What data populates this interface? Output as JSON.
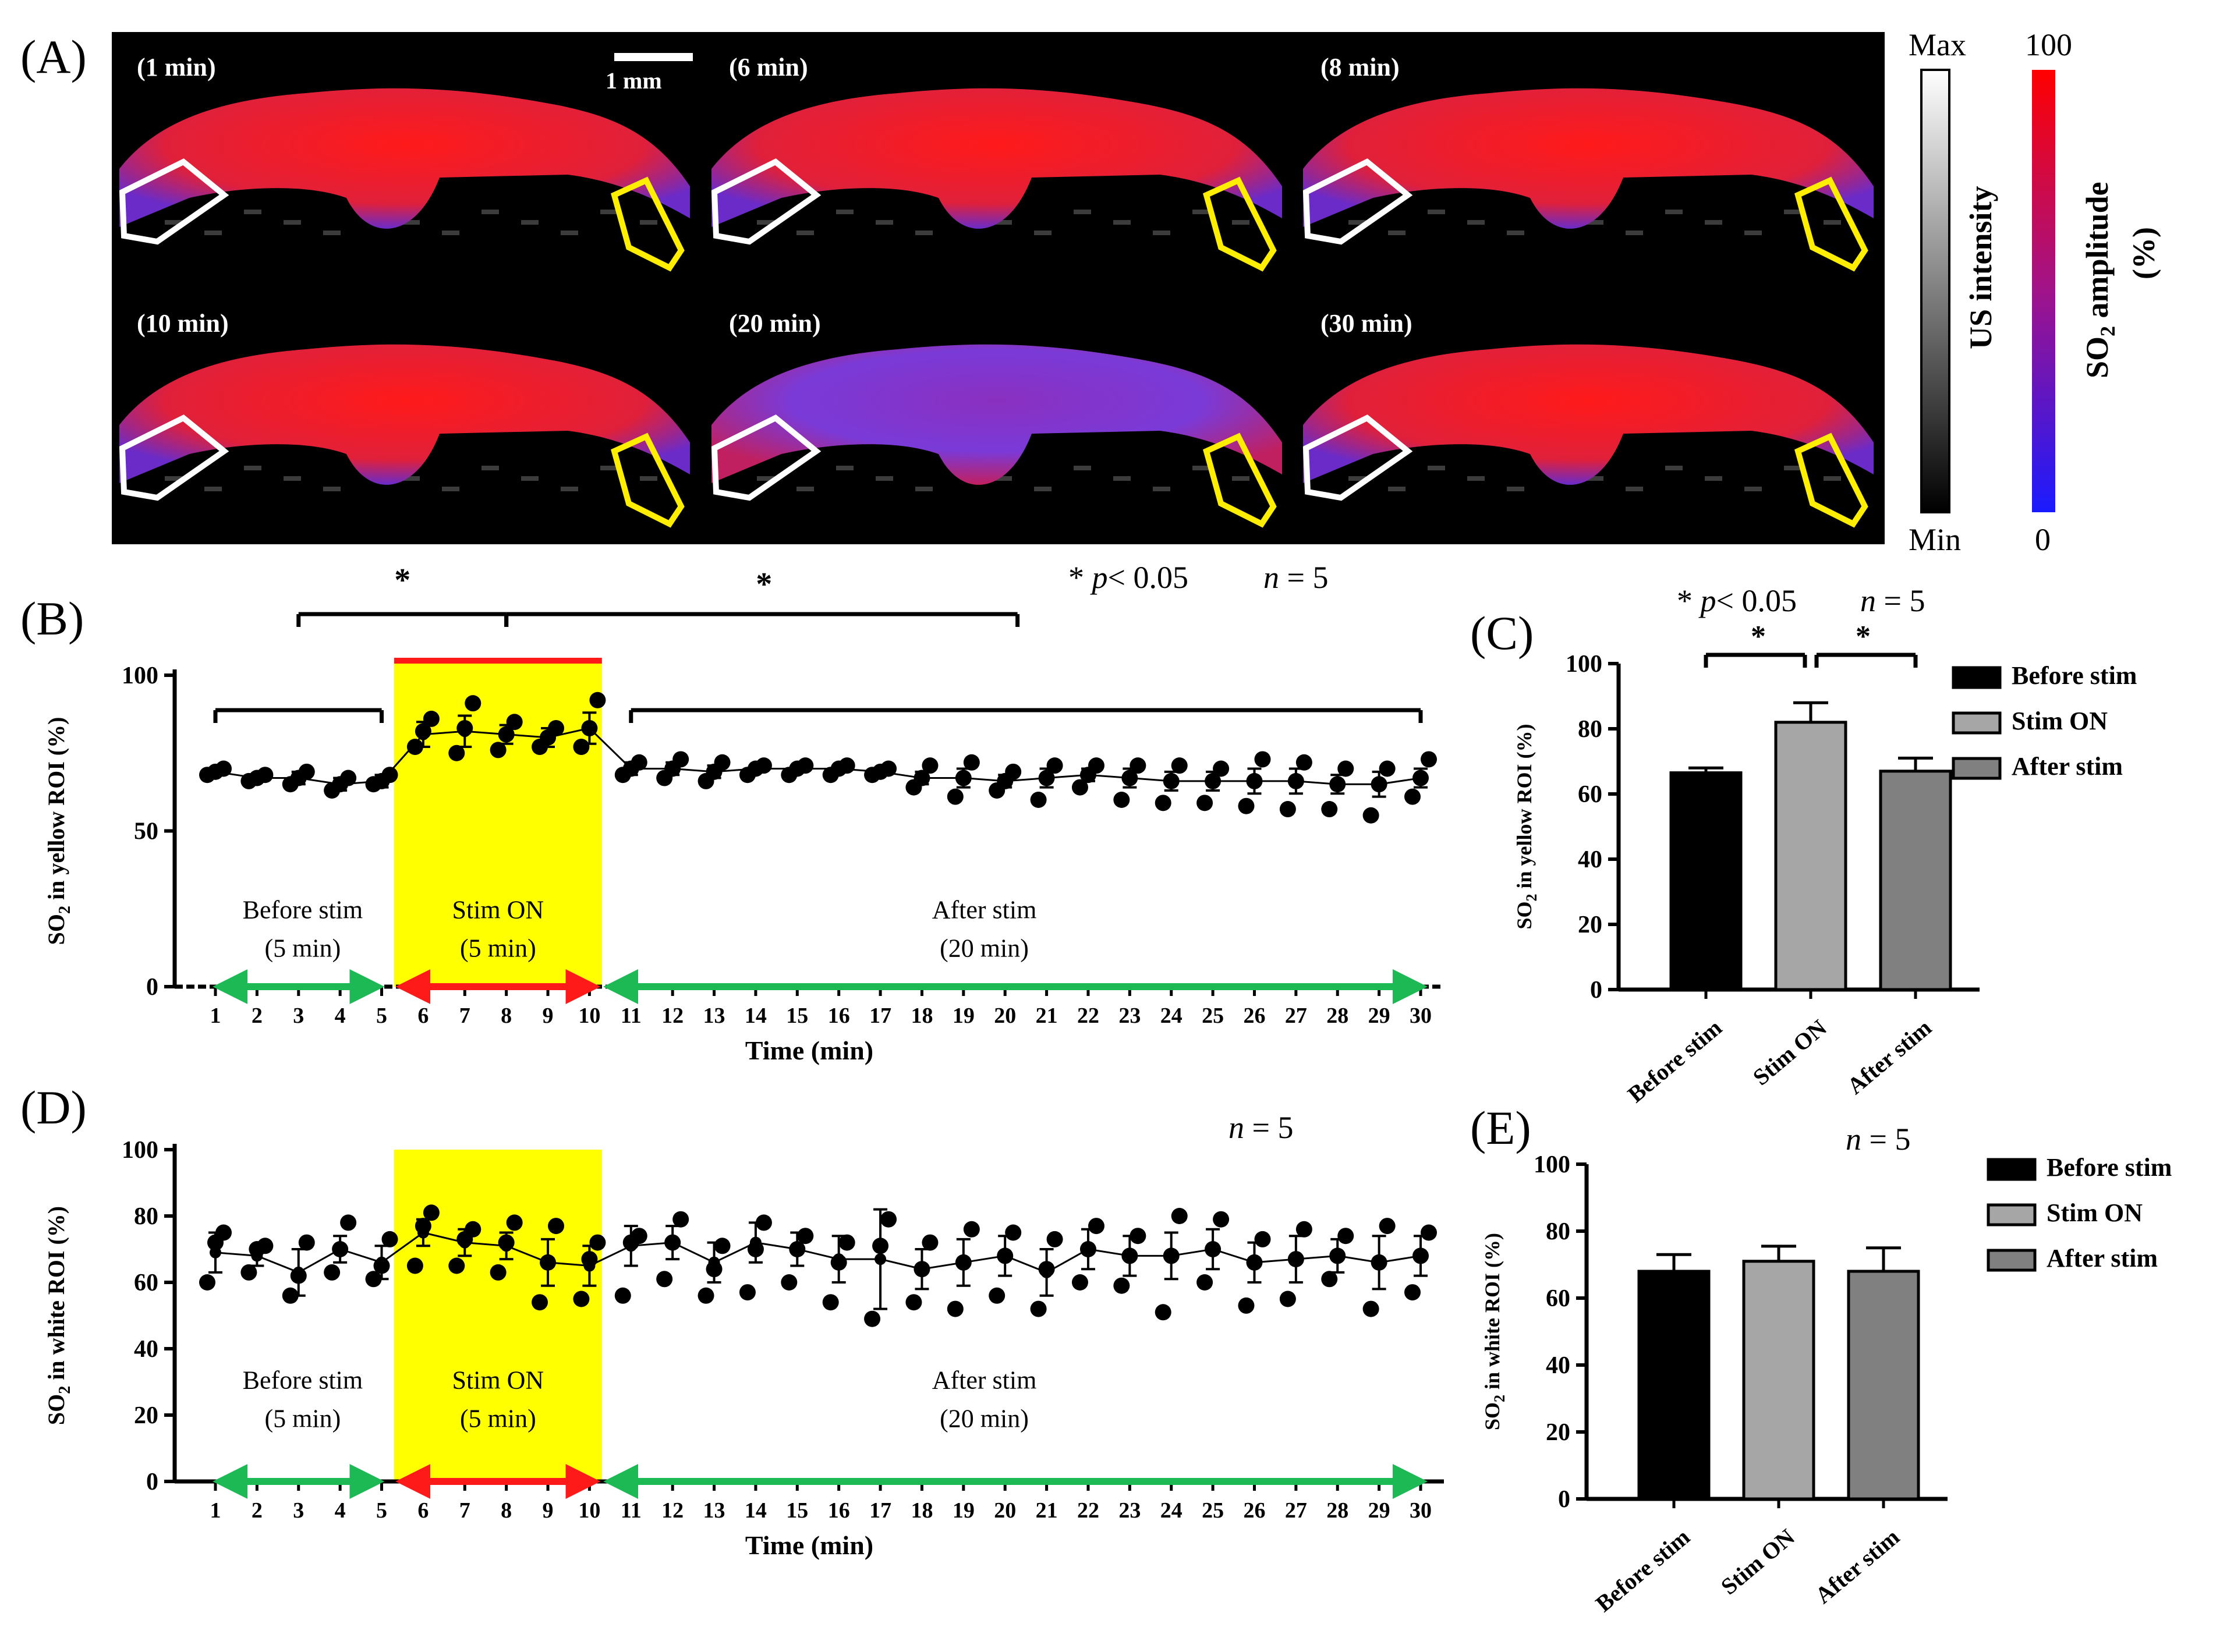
{
  "panel_letters": [
    "(A)",
    "(B)",
    "(C)",
    "(D)",
    "(E)"
  ],
  "panel_a": {
    "frame_labels": [
      "(1 min)",
      "(6 min)",
      "(8 min)",
      "(10 min)",
      "(20 min)",
      "(30 min)"
    ],
    "scale_bar_label": "1 mm",
    "us_colorbar": {
      "label": "US intensity",
      "max": "Max",
      "min": "Min"
    },
    "so2_colorbar": {
      "label_main": "SO",
      "label_sub": "2",
      "label_rest": " amplitude",
      "label_unit": "(%)",
      "max": "100",
      "min": "0"
    },
    "colors": {
      "background": "#000000",
      "so2_high": "#ff1a1a",
      "so2_low": "#3b2bd9",
      "roi_white": "#ffffff",
      "roi_yellow": "#ffee00"
    }
  },
  "colors": {
    "stim_band": "#ffff00",
    "green_arrow": "#1db954",
    "red_arrow": "#ff1a1a",
    "marker": "#000000",
    "bar_before": "#000000",
    "bar_on": "#a6a6a6",
    "bar_after": "#808080"
  },
  "chart_data": [
    {
      "id": "B",
      "type": "scatter",
      "xlabel": "Time (min)",
      "ylabel_parts": [
        "SO",
        "2",
        " in yellow ROI (%)"
      ],
      "ylim": [
        0,
        100
      ],
      "yticks": [
        0,
        50,
        100
      ],
      "x": [
        1,
        2,
        3,
        4,
        5,
        6,
        7,
        8,
        9,
        10,
        11,
        12,
        13,
        14,
        15,
        16,
        17,
        18,
        19,
        20,
        21,
        22,
        23,
        24,
        25,
        26,
        27,
        28,
        29,
        30
      ],
      "mean": [
        69,
        67,
        67,
        65,
        66,
        81,
        82,
        81,
        80,
        83,
        70,
        70,
        69,
        70,
        70,
        70,
        69,
        67,
        67,
        66,
        67,
        68,
        67,
        66,
        66,
        66,
        66,
        65,
        65,
        67
      ],
      "error": [
        1,
        1,
        2,
        2,
        2,
        4,
        5,
        3,
        3,
        5,
        2,
        2,
        2,
        1,
        1,
        1,
        1,
        2,
        3,
        2,
        3,
        2,
        3,
        3,
        3,
        4,
        4,
        3,
        4,
        3
      ],
      "points": [
        [
          68,
          70,
          69
        ],
        [
          66,
          68,
          67
        ],
        [
          65,
          69,
          67
        ],
        [
          63,
          67,
          65
        ],
        [
          65,
          68,
          66
        ],
        [
          77,
          86,
          82
        ],
        [
          75,
          91,
          83
        ],
        [
          76,
          85,
          81
        ],
        [
          77,
          83,
          80
        ],
        [
          77,
          92,
          83
        ],
        [
          68,
          72,
          70
        ],
        [
          67,
          73,
          70
        ],
        [
          66,
          72,
          69
        ],
        [
          68,
          71,
          70
        ],
        [
          68,
          71,
          70
        ],
        [
          68,
          71,
          70
        ],
        [
          68,
          70,
          69
        ],
        [
          64,
          71,
          67
        ],
        [
          61,
          72,
          67
        ],
        [
          63,
          69,
          66
        ],
        [
          60,
          71,
          67
        ],
        [
          64,
          71,
          68
        ],
        [
          60,
          71,
          67
        ],
        [
          59,
          71,
          66
        ],
        [
          59,
          70,
          66
        ],
        [
          58,
          73,
          66
        ],
        [
          57,
          72,
          66
        ],
        [
          57,
          70,
          65
        ],
        [
          55,
          70,
          65
        ],
        [
          61,
          73,
          67
        ]
      ],
      "phases": [
        {
          "name": "Before stim",
          "duration": "(5 min)"
        },
        {
          "name": "Stim ON",
          "duration": "(5 min)"
        },
        {
          "name": "After stim",
          "duration": "(20 min)"
        }
      ],
      "significance": {
        "star": "*",
        "p_text": "p",
        "p_value": "< 0.05",
        "n_italic": "n",
        "n_value": "= 5"
      }
    },
    {
      "id": "C",
      "type": "bar",
      "categories": [
        "Before stim",
        "Stim ON",
        "After stim"
      ],
      "values": [
        66.5,
        82,
        67
      ],
      "error": [
        1.5,
        6,
        4
      ],
      "ylabel_parts": [
        "SO",
        "2",
        " in yellow ROI (%)"
      ],
      "ylim": [
        0,
        100
      ],
      "yticks": [
        0,
        20,
        40,
        60,
        80,
        100
      ],
      "legend": [
        "Before stim",
        "Stim ON",
        "After stim"
      ],
      "significance": {
        "star": "*",
        "p_text": "p",
        "p_value": "< 0.05",
        "n_italic": "n",
        "n_value": "= 5"
      }
    },
    {
      "id": "D",
      "type": "scatter",
      "xlabel": "Time (min)",
      "ylabel_parts": [
        "SO",
        "2",
        " in white ROI (%)"
      ],
      "ylim": [
        0,
        100
      ],
      "yticks": [
        0,
        20,
        40,
        60,
        80,
        100
      ],
      "x": [
        1,
        2,
        3,
        4,
        5,
        6,
        7,
        8,
        9,
        10,
        11,
        12,
        13,
        14,
        15,
        16,
        17,
        18,
        19,
        20,
        21,
        22,
        23,
        24,
        25,
        26,
        27,
        28,
        29,
        30
      ],
      "mean": [
        69,
        68,
        63,
        70,
        66,
        75,
        72,
        71,
        66,
        65,
        71,
        72,
        66,
        72,
        70,
        67,
        67,
        64,
        66,
        68,
        63,
        70,
        68,
        68,
        70,
        66,
        67,
        68,
        66,
        68
      ],
      "error": [
        6,
        3,
        7,
        4,
        5,
        4,
        4,
        4,
        7,
        6,
        6,
        5,
        6,
        6,
        5,
        7,
        15,
        6,
        7,
        6,
        7,
        6,
        6,
        7,
        6,
        6,
        7,
        5,
        8,
        6
      ],
      "points": [
        [
          60,
          75,
          72
        ],
        [
          63,
          71,
          70
        ],
        [
          56,
          72,
          62
        ],
        [
          63,
          78,
          70
        ],
        [
          61,
          73,
          65
        ],
        [
          65,
          81,
          77
        ],
        [
          65,
          76,
          73
        ],
        [
          63,
          78,
          72
        ],
        [
          54,
          77,
          66
        ],
        [
          55,
          72,
          67
        ],
        [
          56,
          74,
          72
        ],
        [
          61,
          79,
          72
        ],
        [
          56,
          71,
          64
        ],
        [
          57,
          78,
          70
        ],
        [
          60,
          74,
          70
        ],
        [
          54,
          72,
          66
        ],
        [
          49,
          79,
          71
        ],
        [
          54,
          72,
          64
        ],
        [
          52,
          76,
          66
        ],
        [
          56,
          75,
          68
        ],
        [
          52,
          73,
          64
        ],
        [
          60,
          77,
          70
        ],
        [
          59,
          74,
          68
        ],
        [
          51,
          80,
          68
        ],
        [
          60,
          79,
          70
        ],
        [
          53,
          73,
          66
        ],
        [
          55,
          76,
          67
        ],
        [
          61,
          74,
          68
        ],
        [
          52,
          77,
          66
        ],
        [
          57,
          75,
          68
        ]
      ],
      "phases": [
        {
          "name": "Before stim",
          "duration": "(5 min)"
        },
        {
          "name": "Stim ON",
          "duration": "(5 min)"
        },
        {
          "name": "After stim",
          "duration": "(20 min)"
        }
      ],
      "n_label": {
        "n_italic": "n",
        "n_value": "= 5"
      }
    },
    {
      "id": "E",
      "type": "bar",
      "categories": [
        "Before stim",
        "Stim ON",
        "After stim"
      ],
      "values": [
        68,
        71,
        68
      ],
      "error": [
        5,
        4.5,
        7
      ],
      "ylabel_parts": [
        "SO",
        "2",
        " in white ROI (%)"
      ],
      "ylim": [
        0,
        100
      ],
      "yticks": [
        0,
        20,
        40,
        60,
        80,
        100
      ],
      "legend": [
        "Before stim",
        "Stim ON",
        "After stim"
      ],
      "n_label": {
        "n_italic": "n",
        "n_value": "= 5"
      }
    }
  ]
}
